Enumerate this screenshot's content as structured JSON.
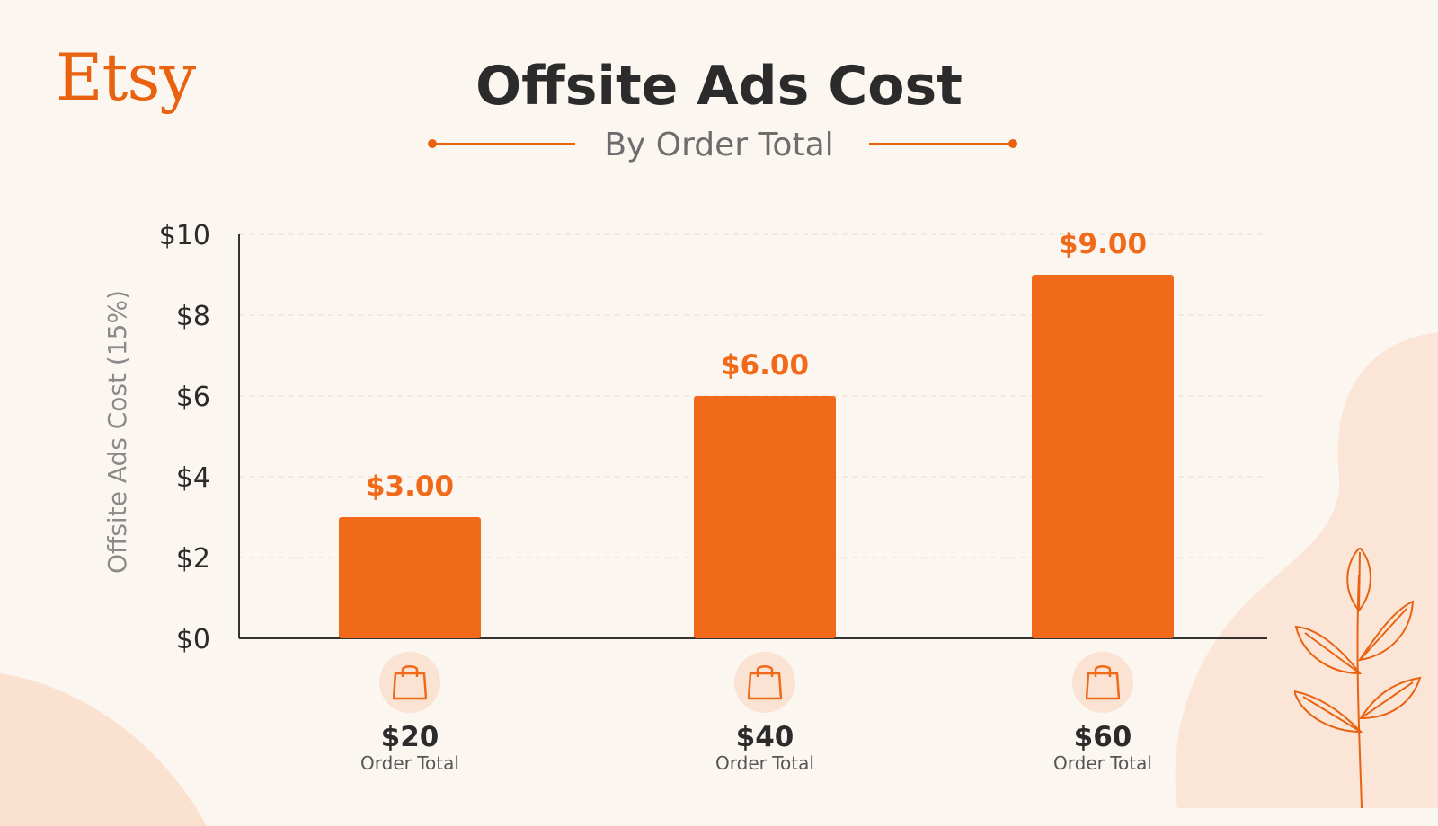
{
  "brand": {
    "logo_text": "Etsy",
    "accent": "#f06a1a"
  },
  "header": {
    "title": "Offsite Ads Cost",
    "subtitle": "By Order Total"
  },
  "chart_data": {
    "type": "bar",
    "title": "Offsite Ads Cost",
    "subtitle": "By Order Total",
    "ylabel": "Offsite Ads Cost (15%)",
    "xlabel": "",
    "ylim": [
      0,
      10
    ],
    "yticks": [
      "$0",
      "$2",
      "$4",
      "$6",
      "$8",
      "$10"
    ],
    "ytick_values": [
      0,
      2,
      4,
      6,
      8,
      10
    ],
    "grid": true,
    "categories": [
      "$20",
      "$40",
      "$60"
    ],
    "category_sublabel": "Order Total",
    "values": [
      3.0,
      6.0,
      9.0
    ],
    "data_labels": [
      "$3.00",
      "$6.00",
      "$9.00"
    ],
    "bar_color": "#f06a1a",
    "category_icon": "shopping-bag-icon"
  }
}
